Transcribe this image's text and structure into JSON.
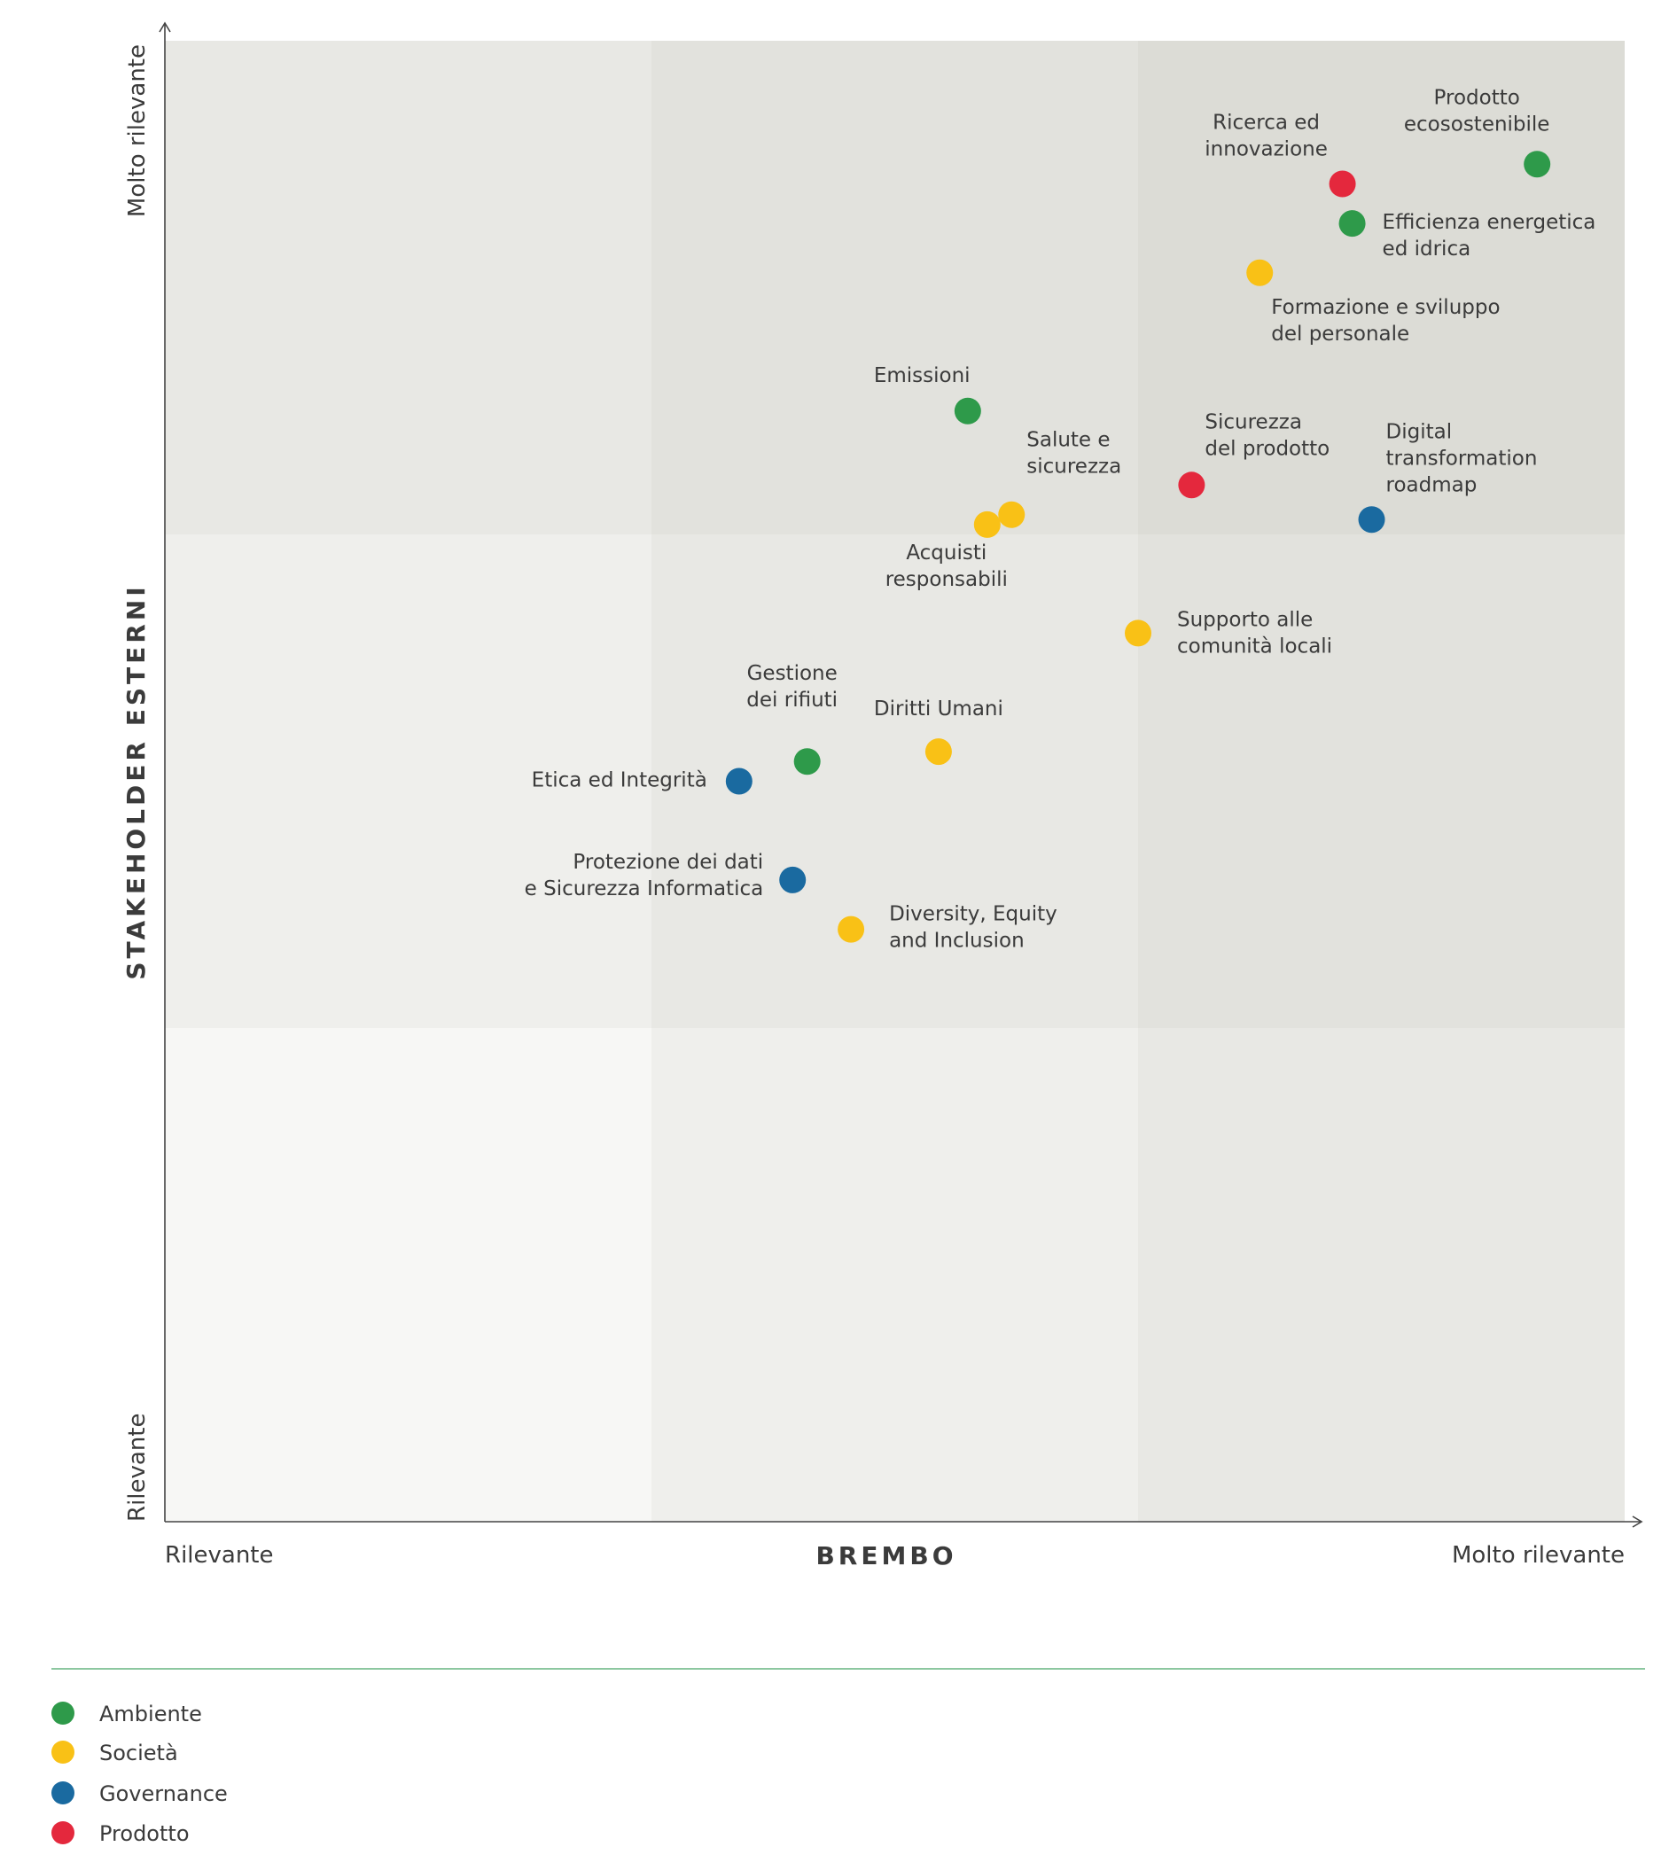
{
  "chart_data": {
    "type": "scatter",
    "xlabel": "BREMBO",
    "ylabel": "STAKEHOLDER ESTERNI",
    "x_low_label": "Rilevante",
    "x_high_label": "Molto rilevante",
    "y_low_label": "Rilevante",
    "y_high_label": "Molto rilevante",
    "xlim": [
      0,
      3
    ],
    "ylim": [
      0,
      3
    ],
    "grid": "3x3 zones",
    "legend_position": "bottom-left",
    "categories": [
      {
        "key": "ambiente",
        "name": "Ambiente",
        "color": "#2e9a4a"
      },
      {
        "key": "societa",
        "name": "Società",
        "color": "#f9c116"
      },
      {
        "key": "governance",
        "name": "Governance",
        "color": "#1a6aa0"
      },
      {
        "key": "prodotto",
        "name": "Prodotto",
        "color": "#e4283d"
      }
    ],
    "points": [
      {
        "lines": [
          "Prodotto",
          "ecosostenibile"
        ],
        "category": "ambiente",
        "x": 2.82,
        "y": 2.75
      },
      {
        "lines": [
          "Ricerca ed",
          "innovazione"
        ],
        "category": "prodotto",
        "x": 2.42,
        "y": 2.71
      },
      {
        "lines": [
          "Efficienza energetica",
          "ed idrica"
        ],
        "category": "ambiente",
        "x": 2.44,
        "y": 2.63
      },
      {
        "lines": [
          "Formazione e sviluppo",
          "del personale"
        ],
        "category": "societa",
        "x": 2.25,
        "y": 2.53
      },
      {
        "lines": [
          "Emissioni"
        ],
        "category": "ambiente",
        "x": 1.65,
        "y": 2.25
      },
      {
        "lines": [
          "Salute e",
          "sicurezza"
        ],
        "category": "societa",
        "x": 1.74,
        "y": 2.04
      },
      {
        "lines": [
          "Acquisti",
          "responsabili"
        ],
        "category": "societa",
        "x": 1.69,
        "y": 2.02
      },
      {
        "lines": [
          "Sicurezza",
          "del prodotto"
        ],
        "category": "prodotto",
        "x": 2.11,
        "y": 2.1
      },
      {
        "lines": [
          "Digital",
          "transformation",
          "roadmap"
        ],
        "category": "governance",
        "x": 2.48,
        "y": 2.03
      },
      {
        "lines": [
          "Supporto alle",
          "comunità locali"
        ],
        "category": "societa",
        "x": 2.0,
        "y": 1.8
      },
      {
        "lines": [
          "Gestione",
          "dei rifiuti"
        ],
        "category": "ambiente",
        "x": 1.32,
        "y": 1.54
      },
      {
        "lines": [
          "Diritti Umani"
        ],
        "category": "societa",
        "x": 1.59,
        "y": 1.56
      },
      {
        "lines": [
          "Etica ed Integrità"
        ],
        "category": "governance",
        "x": 1.18,
        "y": 1.5
      },
      {
        "lines": [
          "Protezione dei dati",
          "e Sicurezza Informatica"
        ],
        "category": "governance",
        "x": 1.29,
        "y": 1.3
      },
      {
        "lines": [
          "Diversity, Equity",
          "and Inclusion"
        ],
        "category": "societa",
        "x": 1.41,
        "y": 1.2
      }
    ]
  }
}
